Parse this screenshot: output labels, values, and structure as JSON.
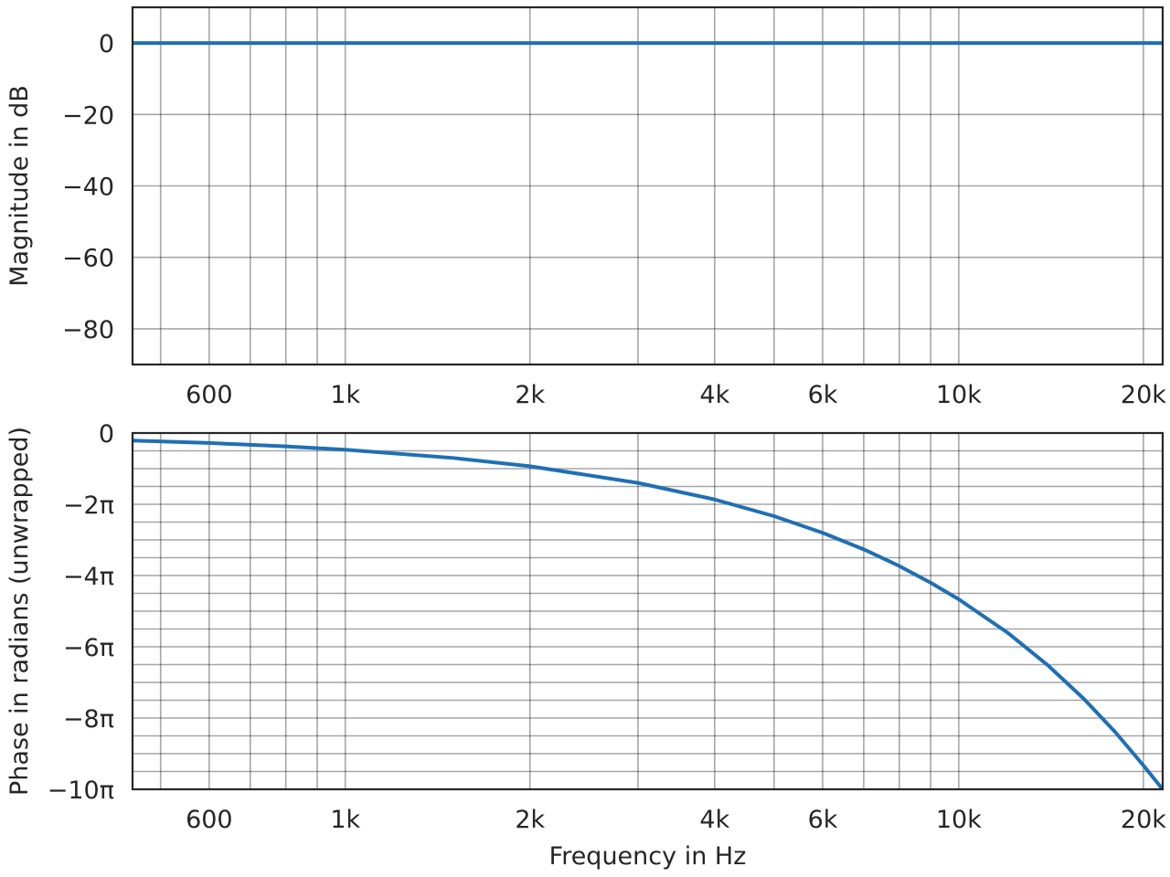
{
  "chart_data": [
    {
      "type": "line",
      "ylabel": "Magnitude in dB",
      "xscale": "log",
      "xlim": [
        450,
        21500
      ],
      "ylim": [
        -90,
        10
      ],
      "x_ticks": [
        {
          "value": 600,
          "label": "600"
        },
        {
          "value": 1000,
          "label": "1k"
        },
        {
          "value": 2000,
          "label": "2k"
        },
        {
          "value": 4000,
          "label": "4k"
        },
        {
          "value": 6000,
          "label": "6k"
        },
        {
          "value": 10000,
          "label": "10k"
        },
        {
          "value": 20000,
          "label": "20k"
        }
      ],
      "x_minor_gridlines": [
        500,
        700,
        800,
        900,
        3000,
        5000,
        7000,
        8000,
        9000
      ],
      "y_ticks": [
        {
          "value": 0,
          "label": "0"
        },
        {
          "value": -20,
          "label": "−20"
        },
        {
          "value": -40,
          "label": "−40"
        },
        {
          "value": -60,
          "label": "−60"
        },
        {
          "value": -80,
          "label": "−80"
        }
      ],
      "y_minor_gridlines": [],
      "grid": true,
      "series": [
        {
          "color": "#1f6fb4",
          "x": [
            450,
            1000,
            2000,
            5000,
            10000,
            21500
          ],
          "y": [
            0,
            0,
            0,
            0,
            0,
            0
          ]
        }
      ]
    },
    {
      "type": "line",
      "xlabel": "Frequency in Hz",
      "ylabel": "Phase in radians (unwrapped)",
      "xscale": "log",
      "xlim": [
        450,
        21500
      ],
      "ylim": [
        -31.4159,
        0
      ],
      "x_ticks": [
        {
          "value": 600,
          "label": "600"
        },
        {
          "value": 1000,
          "label": "1k"
        },
        {
          "value": 2000,
          "label": "2k"
        },
        {
          "value": 4000,
          "label": "4k"
        },
        {
          "value": 6000,
          "label": "6k"
        },
        {
          "value": 10000,
          "label": "10k"
        },
        {
          "value": 20000,
          "label": "20k"
        }
      ],
      "x_minor_gridlines": [
        500,
        700,
        800,
        900,
        3000,
        5000,
        7000,
        8000,
        9000
      ],
      "y_ticks": [
        {
          "value": 0,
          "label": "0"
        },
        {
          "value": -6.2832,
          "label": "−2π"
        },
        {
          "value": -12.5664,
          "label": "−4π"
        },
        {
          "value": -18.8496,
          "label": "−6π"
        },
        {
          "value": -25.1327,
          "label": "−8π"
        },
        {
          "value": -31.4159,
          "label": "−10π"
        }
      ],
      "y_minor_gridlines": [
        -1.5708,
        -3.1416,
        -4.7124,
        -7.854,
        -9.4248,
        -10.9956,
        -14.1372,
        -15.708,
        -17.2788,
        -20.4204,
        -21.9911,
        -23.5619,
        -26.7035,
        -28.2743,
        -29.8451
      ],
      "grid": true,
      "series": [
        {
          "color": "#1f6fb4",
          "x": [
            450,
            600,
            800,
            1000,
            1500,
            2000,
            3000,
            4000,
            5000,
            6000,
            7000,
            8000,
            9000,
            10000,
            12000,
            14000,
            16000,
            18000,
            20000,
            21500
          ],
          "y": [
            -0.66,
            -0.88,
            -1.18,
            -1.47,
            -2.2,
            -2.93,
            -4.4,
            -5.86,
            -7.33,
            -8.8,
            -10.26,
            -11.73,
            -13.2,
            -14.66,
            -17.59,
            -20.52,
            -23.45,
            -26.38,
            -29.31,
            -31.4159
          ]
        }
      ]
    }
  ]
}
